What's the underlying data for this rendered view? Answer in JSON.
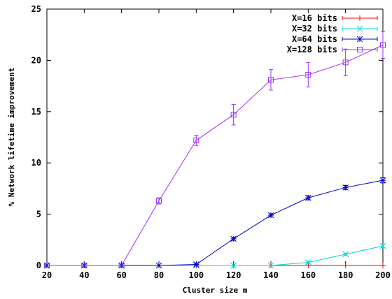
{
  "chart_data": {
    "type": "line",
    "xlabel": "Cluster  size m",
    "ylabel": "% Network lifetime improvement",
    "xlim": [
      20,
      200
    ],
    "ylim": [
      0,
      25
    ],
    "x_ticks": [
      "20",
      "40",
      "60",
      "80",
      "100",
      "120",
      "140",
      "160",
      "180",
      "200"
    ],
    "y_ticks": [
      "0",
      "5",
      "10",
      "15",
      "20",
      "25"
    ],
    "grid": false,
    "legend_position": "top-right",
    "x": [
      20,
      40,
      60,
      80,
      100,
      120,
      140,
      160,
      180,
      200
    ],
    "series": [
      {
        "name": "X=16 bits",
        "marker": "plus",
        "color": "#ff0000",
        "values": [
          0,
          0,
          0,
          0,
          0,
          0,
          0,
          0,
          0,
          0
        ],
        "errors": [
          0,
          0,
          0,
          0,
          0,
          0,
          0,
          0,
          0,
          0
        ]
      },
      {
        "name": "X=32 bits",
        "marker": "cross",
        "color": "#00d8d8",
        "values": [
          0,
          0,
          0,
          0,
          0,
          0,
          0,
          0.3,
          1.1,
          1.9
        ],
        "errors": [
          0,
          0,
          0,
          0,
          0,
          0,
          0,
          0.1,
          0.1,
          0.15
        ]
      },
      {
        "name": "X=64 bits",
        "marker": "star",
        "color": "#0000cc",
        "values": [
          0,
          0,
          0,
          0,
          0.1,
          2.6,
          4.9,
          6.6,
          7.6,
          8.3
        ],
        "errors": [
          0,
          0,
          0,
          0,
          0.1,
          0.15,
          0.15,
          0.2,
          0.2,
          0.25
        ]
      },
      {
        "name": "X=128 bits",
        "marker": "square",
        "color": "#9933ff",
        "values": [
          0,
          0,
          0,
          6.3,
          12.2,
          14.7,
          18.1,
          18.6,
          19.8,
          21.5
        ],
        "errors": [
          0,
          0,
          0,
          0.3,
          0.5,
          1.0,
          1.0,
          1.2,
          1.3,
          1.3
        ]
      }
    ]
  }
}
